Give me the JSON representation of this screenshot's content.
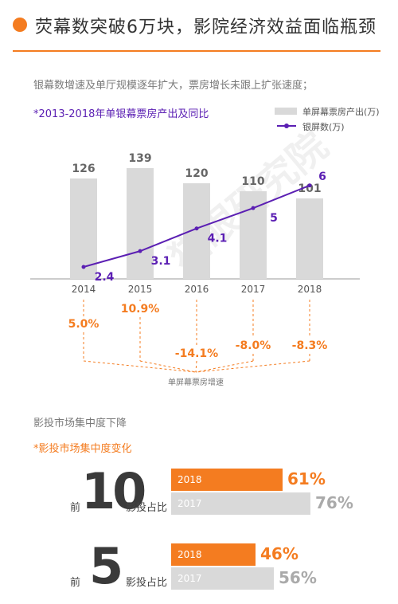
{
  "header": {
    "title": "荧幕数突破6万块，影院经济效益面临瓶颈"
  },
  "intro": {
    "text": "银幕数增速及单厅规模逐年扩大，票房增长未跟上扩张速度；"
  },
  "chart_subtitle": "*2013-2018年单银幕票房产出及同比",
  "legend": {
    "bar": "单屏幕票房产出(万)",
    "line": "银屏数(万)"
  },
  "colors": {
    "accent": "#f47c20",
    "line": "#5b1fb3",
    "bar": "#d9d9d9",
    "dashed": "#f47c20"
  },
  "chart_data": {
    "type": "bar",
    "categories": [
      "2014",
      "2015",
      "2016",
      "2017",
      "2018"
    ],
    "series": [
      {
        "name": "单屏幕票房产出(万)",
        "type": "bar",
        "values": [
          126,
          139,
          120,
          110,
          101
        ]
      },
      {
        "name": "银屏数(万)",
        "type": "line",
        "values": [
          2.4,
          3.1,
          4.1,
          5.0,
          6.0
        ]
      }
    ],
    "growth": {
      "labels": [
        "5.0%",
        "10.9%",
        "-14.1%",
        "-8.0%",
        "-8.3%"
      ],
      "caption": "单屏幕票房增速"
    }
  },
  "section2": {
    "intro": "影投市场集中度下降",
    "subtitle": "*影投市场集中度变化",
    "rows": [
      {
        "prefix": "前",
        "number": "10",
        "suffix": "影投占比",
        "bars": [
          {
            "year": "2018",
            "value": "61%",
            "fraction": 0.61
          },
          {
            "year": "2017",
            "value": "76%",
            "fraction": 0.76
          }
        ]
      },
      {
        "prefix": "前",
        "number": "5",
        "suffix": "影投占比",
        "bars": [
          {
            "year": "2018",
            "value": "46%",
            "fraction": 0.46
          },
          {
            "year": "2017",
            "value": "56%",
            "fraction": 0.56
          }
        ]
      }
    ]
  },
  "watermark": {
    "text": "猫眼研究院"
  }
}
